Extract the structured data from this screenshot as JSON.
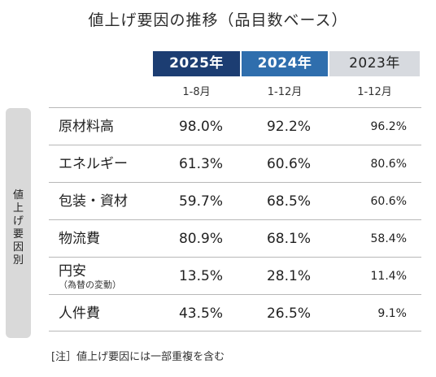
{
  "title": "値上げ要因の推移（品目数ベース）",
  "columns": [
    {
      "year": "2025年",
      "period": "1-8月"
    },
    {
      "year": "2024年",
      "period": "1-12月"
    },
    {
      "year": "2023年",
      "period": "1-12月"
    }
  ],
  "side_label": "値上げ要因別",
  "rows": [
    {
      "label": "原材料高",
      "sublabel": "",
      "values": [
        "98.0%",
        "92.2%",
        "96.2%"
      ]
    },
    {
      "label": "エネルギー",
      "sublabel": "",
      "values": [
        "61.3%",
        "60.6%",
        "80.6%"
      ]
    },
    {
      "label": "包装・資材",
      "sublabel": "",
      "values": [
        "59.7%",
        "68.5%",
        "60.6%"
      ]
    },
    {
      "label": "物流費",
      "sublabel": "",
      "values": [
        "80.9%",
        "68.1%",
        "58.4%"
      ]
    },
    {
      "label": "円安",
      "sublabel": "（為替の変動）",
      "values": [
        "13.5%",
        "28.1%",
        "11.4%"
      ]
    },
    {
      "label": "人件費",
      "sublabel": "",
      "values": [
        "43.5%",
        "26.5%",
        "9.1%"
      ]
    }
  ],
  "note": "[注］値上げ要因には一部重複を含む",
  "colors": {
    "year_2025_bg": "#1c3d72",
    "year_2024_bg": "#2f6ead",
    "year_2023_bg": "#d7dadf",
    "side_label_bg": "#d9d9d9"
  }
}
